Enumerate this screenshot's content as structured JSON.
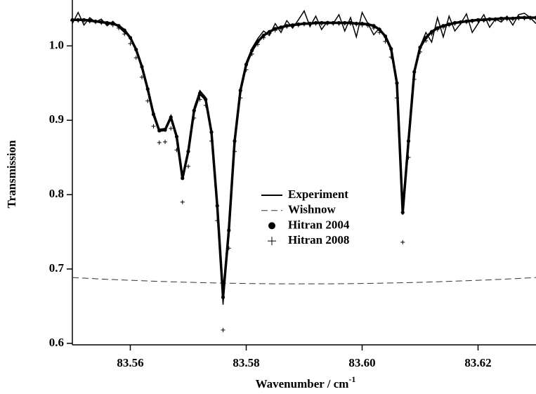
{
  "chart_data": {
    "type": "line",
    "x_label": "Wavenumber / cm",
    "x_label_sup": "-1",
    "y_label": "Transmission",
    "xlim": [
      83.55,
      83.63
    ],
    "ylim": [
      0.598,
      1.057
    ],
    "xticks": [
      83.56,
      83.58,
      {
        "value": 83.6,
        "label": "83.60"
      },
      83.62
    ],
    "yticks": [
      0.6,
      0.7,
      0.8,
      0.9,
      {
        "value": 1,
        "label": "1.0"
      }
    ],
    "x": [
      83.55,
      83.551,
      83.552,
      83.553,
      83.554,
      83.555,
      83.556,
      83.557,
      83.558,
      83.559,
      83.56,
      83.561,
      83.562,
      83.563,
      83.564,
      83.565,
      83.566,
      83.567,
      83.568,
      83.569,
      83.57,
      83.571,
      83.572,
      83.573,
      83.574,
      83.575,
      83.576,
      83.577,
      83.578,
      83.579,
      83.58,
      83.581,
      83.582,
      83.583,
      83.584,
      83.585,
      83.586,
      83.587,
      83.588,
      83.589,
      83.59,
      83.591,
      83.592,
      83.593,
      83.594,
      83.595,
      83.596,
      83.597,
      83.598,
      83.599,
      83.6,
      83.601,
      83.602,
      83.603,
      83.604,
      83.605,
      83.606,
      83.607,
      83.608,
      83.609,
      83.61,
      83.611,
      83.612,
      83.613,
      83.614,
      83.615,
      83.616,
      83.617,
      83.618,
      83.619,
      83.62,
      83.621,
      83.622,
      83.623,
      83.624,
      83.625,
      83.626,
      83.627,
      83.628,
      83.629,
      83.63
    ],
    "series": [
      {
        "name": "Experiment",
        "color": "#000000",
        "style": "line",
        "values": [
          1.03,
          1.045,
          1.028,
          1.038,
          1.032,
          1.036,
          1.027,
          1.033,
          1.025,
          1.018,
          1.012,
          0.993,
          0.974,
          0.944,
          0.912,
          0.888,
          0.889,
          0.906,
          0.88,
          0.823,
          0.86,
          0.917,
          0.94,
          0.931,
          0.886,
          0.788,
          0.652,
          0.754,
          0.874,
          0.942,
          0.978,
          0.997,
          1.01,
          1.02,
          1.014,
          1.03,
          1.018,
          1.034,
          1.024,
          1.035,
          1.047,
          1.026,
          1.04,
          1.022,
          1.033,
          1.03,
          1.042,
          1.02,
          1.038,
          1.012,
          1.045,
          1.03,
          1.015,
          1.024,
          1.01,
          0.998,
          0.952,
          0.773,
          0.875,
          0.966,
          0.999,
          1.018,
          1.005,
          1.038,
          1.012,
          1.04,
          1.02,
          1.03,
          1.043,
          1.018,
          1.03,
          1.042,
          1.025,
          1.036,
          1.032,
          1.04,
          1.028,
          1.042,
          1.044,
          1.038,
          1.03
        ]
      },
      {
        "name": "Wishnow",
        "color": "#333333",
        "style": "dashed",
        "values": [
          0.6885,
          0.6881,
          0.6877,
          0.6873,
          0.6869,
          0.6865,
          0.6861,
          0.6858,
          0.6854,
          0.6851,
          0.6848,
          0.6845,
          0.6842,
          0.6839,
          0.6836,
          0.6833,
          0.6831,
          0.6828,
          0.6826,
          0.6823,
          0.6821,
          0.6819,
          0.6817,
          0.6815,
          0.6814,
          0.6812,
          0.681,
          0.6809,
          0.6808,
          0.6806,
          0.6805,
          0.6804,
          0.6803,
          0.6803,
          0.6802,
          0.6801,
          0.6801,
          0.68,
          0.68,
          0.68,
          0.68,
          0.68,
          0.68,
          0.68,
          0.6801,
          0.6801,
          0.6802,
          0.6803,
          0.6803,
          0.6804,
          0.6805,
          0.6806,
          0.6808,
          0.6809,
          0.681,
          0.6812,
          0.6814,
          0.6815,
          0.6817,
          0.6819,
          0.6821,
          0.6823,
          0.6826,
          0.6828,
          0.6831,
          0.6833,
          0.6836,
          0.6839,
          0.6842,
          0.6845,
          0.6848,
          0.6851,
          0.6854,
          0.6858,
          0.6861,
          0.6865,
          0.6869,
          0.6873,
          0.6877,
          0.6881,
          0.6885
        ]
      },
      {
        "name": "Hitran 2004",
        "color": "#000000",
        "style": "dots",
        "values": [
          1.035,
          1.035,
          1.035,
          1.034,
          1.033,
          1.032,
          1.031,
          1.03,
          1.027,
          1.021,
          1.011,
          0.995,
          0.972,
          0.942,
          0.908,
          0.886,
          0.887,
          0.904,
          0.878,
          0.822,
          0.858,
          0.913,
          0.936,
          0.928,
          0.884,
          0.785,
          0.662,
          0.752,
          0.872,
          0.94,
          0.975,
          0.994,
          1.006,
          1.014,
          1.019,
          1.023,
          1.025,
          1.027,
          1.028,
          1.029,
          1.03,
          1.03,
          1.031,
          1.031,
          1.031,
          1.031,
          1.031,
          1.031,
          1.031,
          1.03,
          1.03,
          1.029,
          1.027,
          1.022,
          1.013,
          0.996,
          0.95,
          0.776,
          0.872,
          0.965,
          0.998,
          1.011,
          1.019,
          1.024,
          1.027,
          1.029,
          1.031,
          1.032,
          1.033,
          1.034,
          1.035,
          1.035,
          1.036,
          1.036,
          1.037,
          1.037,
          1.037,
          1.038,
          1.038,
          1.038,
          1.038
        ]
      },
      {
        "name": "Hitran 2008",
        "color": "#000000",
        "style": "plus",
        "values": [
          1.034,
          1.034,
          1.034,
          1.033,
          1.032,
          1.031,
          1.03,
          1.028,
          1.024,
          1.016,
          1.003,
          0.984,
          0.958,
          0.926,
          0.892,
          0.87,
          0.871,
          0.889,
          0.86,
          0.79,
          0.838,
          0.903,
          0.928,
          0.92,
          0.872,
          0.765,
          0.618,
          0.728,
          0.858,
          0.93,
          0.968,
          0.989,
          1.002,
          1.011,
          1.017,
          1.021,
          1.024,
          1.026,
          1.027,
          1.028,
          1.029,
          1.029,
          1.03,
          1.03,
          1.03,
          1.03,
          1.03,
          1.03,
          1.03,
          1.029,
          1.028,
          1.027,
          1.024,
          1.018,
          1.006,
          0.985,
          0.93,
          0.736,
          0.85,
          0.955,
          0.992,
          1.007,
          1.016,
          1.022,
          1.025,
          1.028,
          1.03,
          1.031,
          1.032,
          1.033,
          1.034,
          1.034,
          1.035,
          1.035,
          1.036,
          1.036,
          1.036,
          1.037,
          1.037,
          1.037,
          1.037
        ]
      }
    ]
  }
}
